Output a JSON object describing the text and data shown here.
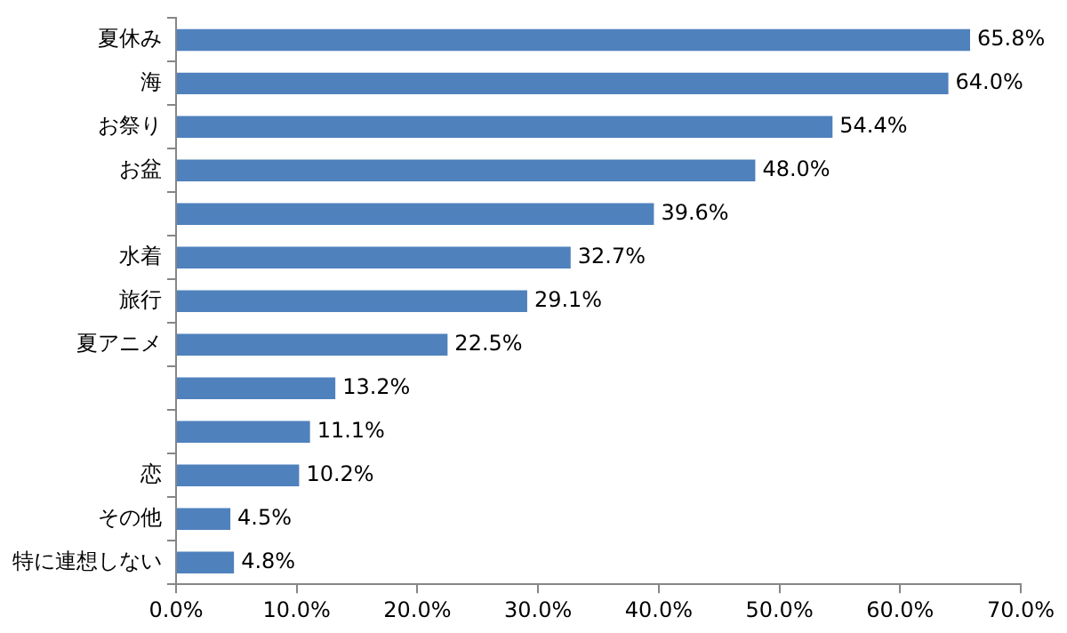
{
  "chart_data": {
    "type": "bar",
    "orientation": "horizontal",
    "categories": [
      "夏休み",
      "海",
      "お祭り",
      "お盆",
      null,
      "水着",
      "旅行",
      "夏アニメ",
      null,
      null,
      "恋",
      "その他",
      "特に連想しない"
    ],
    "values": [
      65.8,
      64.0,
      54.4,
      48.0,
      39.6,
      32.7,
      29.1,
      22.5,
      13.2,
      11.1,
      10.2,
      4.5,
      4.8
    ],
    "value_labels": [
      "65.8%",
      "64.0%",
      "54.4%",
      "48.0%",
      "39.6%",
      "32.7%",
      "29.1%",
      "22.5%",
      "13.2%",
      "11.1%",
      "10.2%",
      "4.5%",
      "4.8%"
    ],
    "color": "#4f81bd",
    "xlim": [
      0,
      70
    ],
    "xticks": [
      {
        "value": 0,
        "label": "0.0%"
      },
      {
        "value": 10,
        "label": "10.0%"
      },
      {
        "value": 20,
        "label": "20.0%"
      },
      {
        "value": 30,
        "label": "30.0%"
      },
      {
        "value": 40,
        "label": "40.0%"
      },
      {
        "value": 50,
        "label": "50.0%"
      },
      {
        "value": 60,
        "label": "60.0%"
      },
      {
        "value": 70,
        "label": "70.0%"
      }
    ],
    "grid": false,
    "legend": false
  }
}
